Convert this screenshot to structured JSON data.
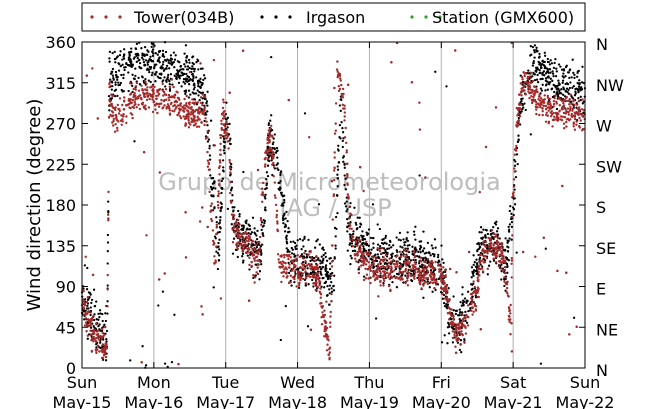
{
  "chart_data": {
    "type": "scatter",
    "ylabel": "Wind direction (degree)",
    "xlabel": "",
    "ylim": [
      0,
      360
    ],
    "xlim": [
      0,
      7
    ],
    "yticks": [
      0,
      45,
      90,
      135,
      180,
      225,
      270,
      315,
      360
    ],
    "right_ticks": [
      {
        "value": 0,
        "label": "N"
      },
      {
        "value": 45,
        "label": "NE"
      },
      {
        "value": 90,
        "label": "E"
      },
      {
        "value": 135,
        "label": "SE"
      },
      {
        "value": 180,
        "label": "S"
      },
      {
        "value": 225,
        "label": "SW"
      },
      {
        "value": 270,
        "label": "W"
      },
      {
        "value": 315,
        "label": "NW"
      },
      {
        "value": 360,
        "label": "N"
      }
    ],
    "xticks": [
      {
        "value": 0,
        "day": "Sun",
        "date": "May-15"
      },
      {
        "value": 1,
        "day": "Mon",
        "date": "May-16"
      },
      {
        "value": 2,
        "day": "Tue",
        "date": "May-17"
      },
      {
        "value": 3,
        "day": "Wed",
        "date": "May-18"
      },
      {
        "value": 4,
        "day": "Thu",
        "date": "May-19"
      },
      {
        "value": 5,
        "day": "Fri",
        "date": "May-20"
      },
      {
        "value": 6,
        "day": "Sat",
        "date": "May-21"
      },
      {
        "value": 7,
        "day": "Sun",
        "date": "May-22"
      }
    ],
    "grid": "vertical",
    "legend_placement": "top",
    "watermark": [
      "Grupo de Micrometeorologia",
      "IAG / USP"
    ],
    "series": [
      {
        "name": "Tower(034B)",
        "color": "#a52a2a",
        "profile": [
          [
            0.0,
            75
          ],
          [
            0.1,
            50
          ],
          [
            0.2,
            32
          ],
          [
            0.3,
            25
          ],
          [
            0.35,
            25
          ],
          [
            0.38,
            300
          ],
          [
            0.45,
            275
          ],
          [
            0.6,
            285
          ],
          [
            0.75,
            300
          ],
          [
            0.85,
            300
          ],
          [
            1.0,
            300
          ],
          [
            1.15,
            300
          ],
          [
            1.3,
            295
          ],
          [
            1.45,
            280
          ],
          [
            1.6,
            285
          ],
          [
            1.72,
            280
          ],
          [
            1.78,
            205
          ],
          [
            1.85,
            105
          ],
          [
            1.95,
            285
          ],
          [
            2.0,
            265
          ],
          [
            2.05,
            245
          ],
          [
            2.08,
            160
          ],
          [
            2.2,
            145
          ],
          [
            2.35,
            130
          ],
          [
            2.45,
            110
          ],
          [
            2.55,
            230
          ],
          [
            2.6,
            250
          ],
          [
            2.65,
            245
          ],
          [
            2.7,
            185
          ],
          [
            2.75,
            115
          ],
          [
            2.9,
            110
          ],
          [
            3.1,
            110
          ],
          [
            3.3,
            105
          ],
          [
            3.35,
            55
          ],
          [
            3.45,
            25
          ],
          [
            3.55,
            330
          ],
          [
            3.65,
            290
          ],
          [
            3.72,
            170
          ],
          [
            3.8,
            130
          ],
          [
            4.0,
            110
          ],
          [
            4.5,
            110
          ],
          [
            4.9,
            105
          ],
          [
            5.0,
            105
          ],
          [
            5.1,
            70
          ],
          [
            5.2,
            35
          ],
          [
            5.3,
            40
          ],
          [
            5.4,
            70
          ],
          [
            5.5,
            85
          ],
          [
            5.55,
            120
          ],
          [
            5.7,
            135
          ],
          [
            5.85,
            125
          ],
          [
            5.92,
            90
          ],
          [
            5.96,
            40
          ],
          [
            6.0,
            195
          ],
          [
            6.05,
            270
          ],
          [
            6.15,
            325
          ],
          [
            6.3,
            300
          ],
          [
            6.4,
            290
          ],
          [
            6.6,
            285
          ],
          [
            6.8,
            285
          ],
          [
            7.0,
            275
          ]
        ]
      },
      {
        "name": "Irgason",
        "color": "#000000",
        "profile": [
          [
            0.0,
            70
          ],
          [
            0.15,
            55
          ],
          [
            0.3,
            30
          ],
          [
            0.35,
            28
          ],
          [
            0.38,
            320
          ],
          [
            0.5,
            325
          ],
          [
            0.7,
            335
          ],
          [
            0.9,
            335
          ],
          [
            1.0,
            340
          ],
          [
            1.2,
            335
          ],
          [
            1.4,
            325
          ],
          [
            1.6,
            320
          ],
          [
            1.75,
            280
          ],
          [
            1.8,
            210
          ],
          [
            1.9,
            130
          ],
          [
            2.0,
            280
          ],
          [
            2.05,
            265
          ],
          [
            2.1,
            155
          ],
          [
            2.3,
            140
          ],
          [
            2.5,
            120
          ],
          [
            2.6,
            250
          ],
          [
            2.7,
            240
          ],
          [
            2.8,
            180
          ],
          [
            2.9,
            120
          ],
          [
            3.2,
            115
          ],
          [
            3.4,
            110
          ],
          [
            3.5,
            80
          ],
          [
            3.6,
            300
          ],
          [
            3.7,
            150
          ],
          [
            3.85,
            140
          ],
          [
            4.0,
            125
          ],
          [
            4.5,
            120
          ],
          [
            4.9,
            115
          ],
          [
            5.0,
            110
          ],
          [
            5.1,
            60
          ],
          [
            5.25,
            40
          ],
          [
            5.4,
            80
          ],
          [
            5.55,
            130
          ],
          [
            5.75,
            140
          ],
          [
            5.9,
            110
          ],
          [
            6.0,
            180
          ],
          [
            6.1,
            300
          ],
          [
            6.3,
            340
          ],
          [
            6.5,
            320
          ],
          [
            6.8,
            310
          ],
          [
            7.0,
            300
          ]
        ]
      },
      {
        "name": "Station (GMX600)",
        "color": "#2ca02c",
        "profile": []
      }
    ]
  }
}
